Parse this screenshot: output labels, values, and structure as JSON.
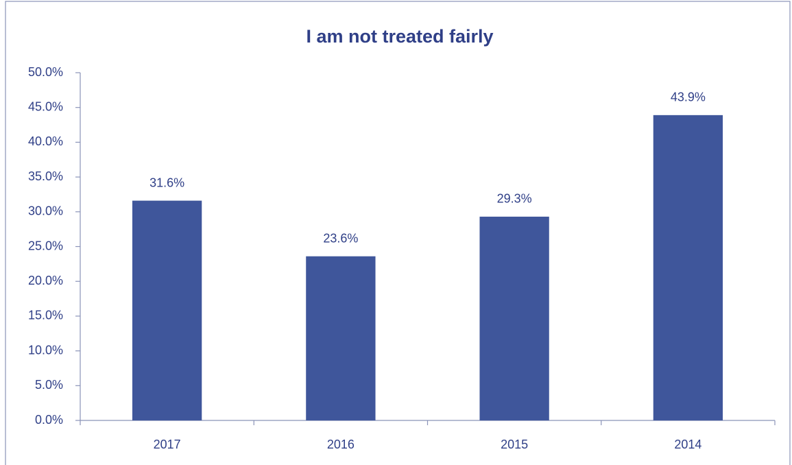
{
  "chart_data": {
    "type": "bar",
    "title": "I am not treated fairly",
    "categories": [
      "2017",
      "2016",
      "2015",
      "2014"
    ],
    "values": [
      31.6,
      23.6,
      29.3,
      43.9
    ],
    "value_labels": [
      "31.6%",
      "23.6%",
      "29.3%",
      "43.9%"
    ],
    "color": "#3f569b",
    "ylim": [
      0,
      50
    ],
    "yticks": [
      {
        "value": 0,
        "label": "0.0%"
      },
      {
        "value": 5,
        "label": "5.0%"
      },
      {
        "value": 10,
        "label": "10.0%"
      },
      {
        "value": 15,
        "label": "15.0%"
      },
      {
        "value": 20,
        "label": "20.0%"
      },
      {
        "value": 25,
        "label": "25.0%"
      },
      {
        "value": 30,
        "label": "30.0%"
      },
      {
        "value": 35,
        "label": "35.0%"
      },
      {
        "value": 40,
        "label": "40.0%"
      },
      {
        "value": 45,
        "label": "45.0%"
      },
      {
        "value": 50,
        "label": "50.0%"
      }
    ],
    "grid": false
  }
}
